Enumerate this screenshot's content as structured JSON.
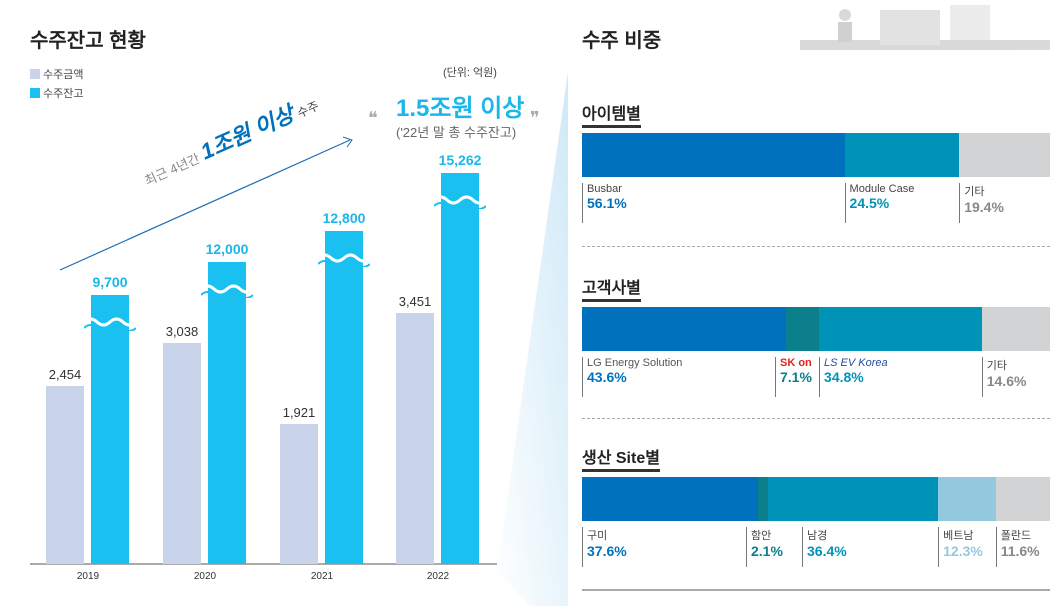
{
  "left": {
    "title": "수주잔고 현황",
    "unit": "(단위: 억원)",
    "legend": [
      "수주금액",
      "수주잔고"
    ],
    "annotation_trend_prefix": "최근 4년간",
    "annotation_trend_main": "1조원 이상",
    "annotation_trend_suffix": "수주",
    "callout_main": "1.5조원 이상",
    "callout_sub": "('22년 말 총 수주잔고)"
  },
  "right": {
    "title": "수주 비중"
  },
  "colors": {
    "order_amount": "#c9d3ea",
    "backlog": "#1ac0ef",
    "blue": "#0071bc",
    "teal": "#0c7f8c",
    "cyan": "#0093b8",
    "light": "#93c9df",
    "gray": "#d1d3d4"
  },
  "chart_data": [
    {
      "type": "bar",
      "categories": [
        "2019",
        "2020",
        "2021",
        "2022"
      ],
      "series": [
        {
          "name": "수주금액",
          "values": [
            2454,
            3038,
            1921,
            3451
          ],
          "labels": [
            "2,454",
            "3,038",
            "1,921",
            "3,451"
          ]
        },
        {
          "name": "수주잔고",
          "values": [
            9700,
            12000,
            12800,
            15262
          ],
          "labels": [
            "9,700",
            "12,000",
            "12,800",
            "15,262"
          ],
          "broken_axis": true
        }
      ]
    },
    {
      "type": "stacked-bar",
      "title": "아이템별",
      "segments": [
        {
          "name": "Busbar",
          "value": 56.1,
          "label": "56.1%",
          "color": "#0071bc"
        },
        {
          "name": "Module Case",
          "value": 24.5,
          "label": "24.5%",
          "color": "#0093b8"
        },
        {
          "name": "기타",
          "value": 19.4,
          "label": "19.4%",
          "color": "#d1d3d4"
        }
      ]
    },
    {
      "type": "stacked-bar",
      "title": "고객사별",
      "segments": [
        {
          "name": "LG Energy Solution",
          "value": 43.6,
          "label": "43.6%",
          "color": "#0071bc"
        },
        {
          "name": "SK on",
          "value": 7.1,
          "label": "7.1%",
          "color": "#0c7f8c"
        },
        {
          "name": "LS EV Korea",
          "value": 34.8,
          "label": "34.8%",
          "color": "#0093b8"
        },
        {
          "name": "기타",
          "value": 14.6,
          "label": "14.6%",
          "color": "#d1d3d4"
        }
      ]
    },
    {
      "type": "stacked-bar",
      "title": "생산 Site별",
      "segments": [
        {
          "name": "구미",
          "value": 37.6,
          "label": "37.6%",
          "color": "#0071bc"
        },
        {
          "name": "함안",
          "value": 2.1,
          "label": "2.1%",
          "color": "#0c7f8c"
        },
        {
          "name": "남경",
          "value": 36.4,
          "label": "36.4%",
          "color": "#0093b8"
        },
        {
          "name": "베트남",
          "value": 12.3,
          "label": "12.3%",
          "color": "#93c9df"
        },
        {
          "name": "폴란드",
          "value": 11.6,
          "label": "11.6%",
          "color": "#d1d3d4"
        }
      ]
    }
  ]
}
